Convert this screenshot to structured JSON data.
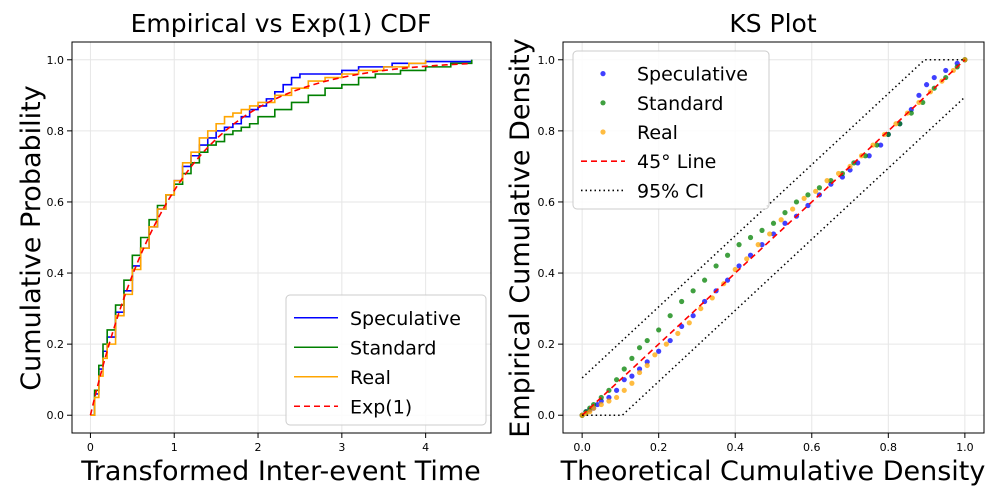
{
  "chart_data": [
    {
      "type": "line",
      "title": "Empirical vs Exp(1) CDF",
      "xlabel": "Transformed Inter-event Time",
      "ylabel": "Cumulative Probability",
      "xlim": [
        -0.22,
        4.78
      ],
      "ylim": [
        -0.05,
        1.05
      ],
      "xticks": [
        0,
        1,
        2,
        3,
        4
      ],
      "yticks": [
        0.0,
        0.2,
        0.4,
        0.6,
        0.8,
        1.0
      ],
      "grid": true,
      "legend_position": "lower-right",
      "series": [
        {
          "name": "Speculative",
          "color": "#0000ff",
          "style": "step",
          "x": [
            0,
            0.05,
            0.1,
            0.15,
            0.2,
            0.3,
            0.4,
            0.5,
            0.6,
            0.7,
            0.8,
            0.9,
            1.0,
            1.1,
            1.2,
            1.3,
            1.4,
            1.5,
            1.6,
            1.7,
            1.8,
            1.9,
            2.0,
            2.1,
            2.2,
            2.3,
            2.4,
            2.5,
            2.6,
            2.8,
            3.0,
            3.2,
            3.6,
            4.0,
            4.55
          ],
          "y": [
            0.0,
            0.06,
            0.13,
            0.18,
            0.22,
            0.29,
            0.35,
            0.42,
            0.47,
            0.53,
            0.58,
            0.62,
            0.66,
            0.7,
            0.73,
            0.76,
            0.78,
            0.8,
            0.81,
            0.82,
            0.84,
            0.86,
            0.87,
            0.89,
            0.91,
            0.93,
            0.95,
            0.96,
            0.96,
            0.96,
            0.97,
            0.98,
            0.99,
            0.995,
            1.0
          ]
        },
        {
          "name": "Standard",
          "color": "#008000",
          "style": "step",
          "x": [
            0,
            0.05,
            0.1,
            0.15,
            0.2,
            0.3,
            0.4,
            0.5,
            0.6,
            0.7,
            0.8,
            0.9,
            1.0,
            1.1,
            1.2,
            1.3,
            1.4,
            1.5,
            1.6,
            1.7,
            1.8,
            1.9,
            2.0,
            2.2,
            2.4,
            2.6,
            2.8,
            3.0,
            3.2,
            3.4,
            3.7,
            4.0,
            4.3,
            4.55
          ],
          "y": [
            0.0,
            0.07,
            0.14,
            0.2,
            0.24,
            0.31,
            0.38,
            0.45,
            0.5,
            0.55,
            0.59,
            0.62,
            0.65,
            0.68,
            0.71,
            0.74,
            0.76,
            0.77,
            0.79,
            0.8,
            0.81,
            0.82,
            0.84,
            0.86,
            0.88,
            0.9,
            0.92,
            0.93,
            0.95,
            0.96,
            0.97,
            0.98,
            0.99,
            1.0
          ]
        },
        {
          "name": "Real",
          "color": "#ffa500",
          "style": "step",
          "x": [
            0,
            0.05,
            0.1,
            0.15,
            0.2,
            0.3,
            0.4,
            0.5,
            0.6,
            0.7,
            0.8,
            0.9,
            1.0,
            1.1,
            1.2,
            1.3,
            1.4,
            1.5,
            1.6,
            1.7,
            1.8,
            1.9,
            2.0,
            2.2,
            2.4,
            2.6,
            2.8,
            3.0,
            3.2,
            3.5,
            3.8,
            4.0
          ],
          "y": [
            0.0,
            0.05,
            0.11,
            0.16,
            0.2,
            0.28,
            0.34,
            0.41,
            0.47,
            0.53,
            0.58,
            0.62,
            0.66,
            0.71,
            0.74,
            0.78,
            0.8,
            0.82,
            0.84,
            0.85,
            0.86,
            0.87,
            0.88,
            0.9,
            0.92,
            0.94,
            0.95,
            0.96,
            0.97,
            0.98,
            0.99,
            1.0
          ]
        },
        {
          "name": "Exp(1)",
          "color": "#ff0000",
          "style": "dashed",
          "function": "1-exp(-x)",
          "x_range": [
            0,
            4.55
          ]
        }
      ]
    },
    {
      "type": "scatter",
      "title": "KS Plot",
      "xlabel": "Theoretical Cumulative Density",
      "ylabel": "Empirical Cumulative Density",
      "xlim": [
        -0.05,
        1.05
      ],
      "ylim": [
        -0.05,
        1.05
      ],
      "xticks": [
        0.0,
        0.2,
        0.4,
        0.6,
        0.8,
        1.0
      ],
      "yticks": [
        0.0,
        0.2,
        0.4,
        0.6,
        0.8,
        1.0
      ],
      "grid": true,
      "legend_position": "upper-left",
      "series": [
        {
          "name": "Speculative",
          "color": "#0000ff",
          "style": "points",
          "points": [
            [
              0.0,
              0.0
            ],
            [
              0.01,
              0.01
            ],
            [
              0.02,
              0.015
            ],
            [
              0.03,
              0.02
            ],
            [
              0.04,
              0.03
            ],
            [
              0.05,
              0.04
            ],
            [
              0.07,
              0.05
            ],
            [
              0.09,
              0.07
            ],
            [
              0.11,
              0.1
            ],
            [
              0.13,
              0.11
            ],
            [
              0.15,
              0.13
            ],
            [
              0.17,
              0.15
            ],
            [
              0.2,
              0.18
            ],
            [
              0.23,
              0.21
            ],
            [
              0.26,
              0.25
            ],
            [
              0.29,
              0.28
            ],
            [
              0.32,
              0.32
            ],
            [
              0.35,
              0.35
            ],
            [
              0.38,
              0.38
            ],
            [
              0.41,
              0.42
            ],
            [
              0.44,
              0.45
            ],
            [
              0.47,
              0.48
            ],
            [
              0.5,
              0.51
            ],
            [
              0.53,
              0.54
            ],
            [
              0.56,
              0.56
            ],
            [
              0.59,
              0.59
            ],
            [
              0.62,
              0.62
            ],
            [
              0.65,
              0.65
            ],
            [
              0.68,
              0.67
            ],
            [
              0.7,
              0.69
            ],
            [
              0.72,
              0.71
            ],
            [
              0.75,
              0.73
            ],
            [
              0.78,
              0.76
            ],
            [
              0.8,
              0.79
            ],
            [
              0.83,
              0.82
            ],
            [
              0.86,
              0.86
            ],
            [
              0.88,
              0.9
            ],
            [
              0.9,
              0.93
            ],
            [
              0.92,
              0.95
            ],
            [
              0.95,
              0.97
            ],
            [
              0.98,
              0.99
            ],
            [
              1.0,
              1.0
            ]
          ]
        },
        {
          "name": "Standard",
          "color": "#008000",
          "style": "points",
          "points": [
            [
              0.0,
              0.0
            ],
            [
              0.01,
              0.01
            ],
            [
              0.02,
              0.02
            ],
            [
              0.03,
              0.03
            ],
            [
              0.05,
              0.05
            ],
            [
              0.07,
              0.07
            ],
            [
              0.09,
              0.1
            ],
            [
              0.11,
              0.13
            ],
            [
              0.13,
              0.16
            ],
            [
              0.15,
              0.19
            ],
            [
              0.17,
              0.21
            ],
            [
              0.2,
              0.24
            ],
            [
              0.23,
              0.28
            ],
            [
              0.26,
              0.32
            ],
            [
              0.29,
              0.35
            ],
            [
              0.32,
              0.38
            ],
            [
              0.35,
              0.42
            ],
            [
              0.38,
              0.45
            ],
            [
              0.41,
              0.48
            ],
            [
              0.44,
              0.5
            ],
            [
              0.47,
              0.52
            ],
            [
              0.5,
              0.54
            ],
            [
              0.53,
              0.57
            ],
            [
              0.56,
              0.6
            ],
            [
              0.59,
              0.62
            ],
            [
              0.62,
              0.64
            ],
            [
              0.65,
              0.66
            ],
            [
              0.68,
              0.68
            ],
            [
              0.71,
              0.71
            ],
            [
              0.74,
              0.73
            ],
            [
              0.77,
              0.76
            ],
            [
              0.8,
              0.79
            ],
            [
              0.83,
              0.82
            ],
            [
              0.86,
              0.85
            ],
            [
              0.89,
              0.88
            ],
            [
              0.92,
              0.92
            ],
            [
              0.95,
              0.95
            ],
            [
              0.98,
              0.98
            ],
            [
              1.0,
              1.0
            ]
          ]
        },
        {
          "name": "Real",
          "color": "#ffa500",
          "style": "points",
          "points": [
            [
              0.0,
              0.0
            ],
            [
              0.01,
              0.005
            ],
            [
              0.02,
              0.01
            ],
            [
              0.03,
              0.02
            ],
            [
              0.05,
              0.03
            ],
            [
              0.07,
              0.04
            ],
            [
              0.09,
              0.05
            ],
            [
              0.11,
              0.07
            ],
            [
              0.13,
              0.09
            ],
            [
              0.15,
              0.12
            ],
            [
              0.17,
              0.14
            ],
            [
              0.19,
              0.17
            ],
            [
              0.22,
              0.2
            ],
            [
              0.25,
              0.23
            ],
            [
              0.28,
              0.26
            ],
            [
              0.31,
              0.3
            ],
            [
              0.34,
              0.33
            ],
            [
              0.37,
              0.37
            ],
            [
              0.4,
              0.41
            ],
            [
              0.43,
              0.44
            ],
            [
              0.46,
              0.48
            ],
            [
              0.49,
              0.51
            ],
            [
              0.52,
              0.55
            ],
            [
              0.55,
              0.58
            ],
            [
              0.58,
              0.61
            ],
            [
              0.61,
              0.63
            ],
            [
              0.64,
              0.66
            ],
            [
              0.67,
              0.68
            ],
            [
              0.7,
              0.7
            ],
            [
              0.73,
              0.73
            ],
            [
              0.76,
              0.76
            ],
            [
              0.79,
              0.79
            ],
            [
              0.82,
              0.82
            ],
            [
              0.85,
              0.85
            ],
            [
              0.88,
              0.88
            ],
            [
              0.91,
              0.91
            ],
            [
              0.94,
              0.94
            ],
            [
              0.97,
              0.97
            ],
            [
              1.0,
              1.0
            ]
          ]
        },
        {
          "name": "45° Line",
          "color": "#ff0000",
          "style": "dashed",
          "x": [
            0,
            1
          ],
          "y": [
            0,
            1
          ]
        },
        {
          "name": "95% CI",
          "color": "#000000",
          "style": "dotted",
          "upper": {
            "x": [
              0,
              0.895,
              1.0
            ],
            "y": [
              0.105,
              1.0,
              1.0
            ]
          },
          "lower": {
            "x": [
              0,
              0.105,
              1.0
            ],
            "y": [
              0,
              0,
              0.895
            ]
          }
        }
      ]
    }
  ]
}
